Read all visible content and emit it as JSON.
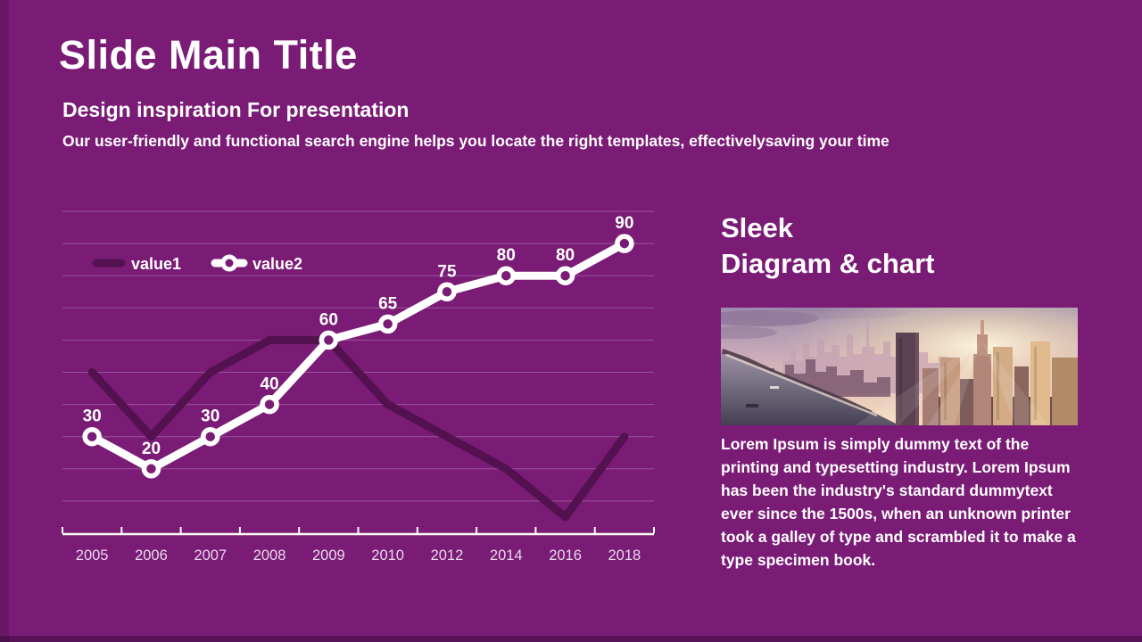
{
  "slide": {
    "title": "Slide Main Title",
    "subtitle": "Design inspiration For presentation",
    "description": "Our user-friendly and functional search engine helps you locate the right templates, effectivelysaving your time"
  },
  "right_panel": {
    "heading_line1": "Sleek",
    "heading_line2": "Diagram & chart",
    "image_name": "city-skyline-sunset-photo",
    "paragraph": "Lorem Ipsum is simply dummy text of the printing and typesetting industry. Lorem Ipsum has been the industry's standard dummytext ever since the 1500s, when an unknown printer took a galley of type and scrambled it to make a type specimen book."
  },
  "chart_data": {
    "type": "line",
    "categories": [
      "2005",
      "2006",
      "2007",
      "2008",
      "2009",
      "2010",
      "2012",
      "2014",
      "2016",
      "2018"
    ],
    "series": [
      {
        "name": "value1",
        "values": [
          50,
          30,
          50,
          60,
          60,
          40,
          30,
          20,
          5,
          30
        ],
        "color": "#531150",
        "markers": false,
        "data_labels": false
      },
      {
        "name": "value2",
        "values": [
          30,
          20,
          30,
          40,
          60,
          65,
          75,
          80,
          80,
          90
        ],
        "color": "#ffffff",
        "markers": true,
        "data_labels": true
      }
    ],
    "ylim": [
      0,
      100
    ],
    "grid_step": 10,
    "grid": true,
    "legend_position": "inside-top-left",
    "background_color": "#7a1b76",
    "gridline_color": "#b286b6",
    "axis_color": "#ffffff",
    "axis_label_color": "#e9d9ec",
    "data_label_color": "#ffffff"
  }
}
